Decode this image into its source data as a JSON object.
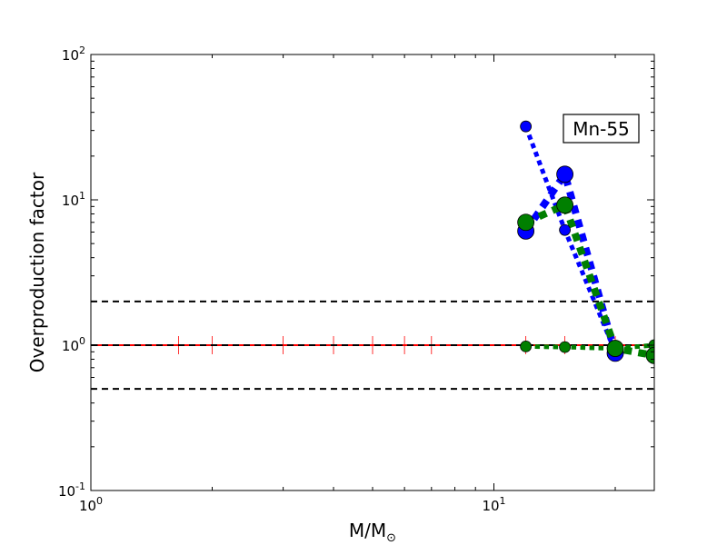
{
  "chart_data": {
    "type": "line",
    "xscale": "log",
    "yscale": "log",
    "xlim": [
      1,
      25
    ],
    "ylim": [
      0.1,
      100
    ],
    "xlabel": "M/M",
    "xlabel_sub": "⊙",
    "ylabel": "Overproduction factor",
    "grid": false,
    "x_ticks": [
      {
        "value": 1,
        "base": "10",
        "exp": "0"
      },
      {
        "value": 10,
        "base": "10",
        "exp": "1"
      }
    ],
    "y_ticks": [
      {
        "value": 0.1,
        "base": "10",
        "exp": "-1"
      },
      {
        "value": 1,
        "base": "10",
        "exp": "0"
      },
      {
        "value": 10,
        "base": "10",
        "exp": "1"
      },
      {
        "value": 100,
        "base": "10",
        "exp": "2"
      }
    ],
    "annotation": "Mn-55",
    "reference_lines": [
      {
        "y": 2,
        "color": "#000000",
        "style": "dashed"
      },
      {
        "y": 1,
        "color": "#000000",
        "style": "dashed"
      },
      {
        "y": 0.5,
        "color": "#000000",
        "style": "dashed"
      }
    ],
    "solar_line": {
      "color": "#ff0000",
      "y": 1,
      "tick_x": [
        1.65,
        2,
        3,
        4,
        5,
        6,
        7,
        12,
        15,
        20,
        25
      ]
    },
    "series": [
      {
        "color": "#0000ff",
        "width": 5,
        "marker_r": 6,
        "points": [
          {
            "x": 12,
            "y": 32
          },
          {
            "x": 15,
            "y": 6.2
          },
          {
            "x": 20,
            "y": 0.9
          }
        ]
      },
      {
        "color": "#0000ff",
        "width": 8,
        "marker_r": 9,
        "points": [
          {
            "x": 12,
            "y": 6.1
          },
          {
            "x": 15,
            "y": 15
          },
          {
            "x": 20,
            "y": 0.88
          }
        ]
      },
      {
        "color": "#007f00",
        "width": 5,
        "marker_r": 6,
        "points": [
          {
            "x": 12,
            "y": 0.98
          },
          {
            "x": 15,
            "y": 0.97
          },
          {
            "x": 20,
            "y": 0.95
          },
          {
            "x": 25,
            "y": 1.0
          }
        ]
      },
      {
        "color": "#007f00",
        "width": 8,
        "marker_r": 9,
        "points": [
          {
            "x": 12,
            "y": 7.0
          },
          {
            "x": 15,
            "y": 9.2
          },
          {
            "x": 20,
            "y": 0.95
          },
          {
            "x": 25,
            "y": 0.85
          }
        ]
      }
    ]
  }
}
